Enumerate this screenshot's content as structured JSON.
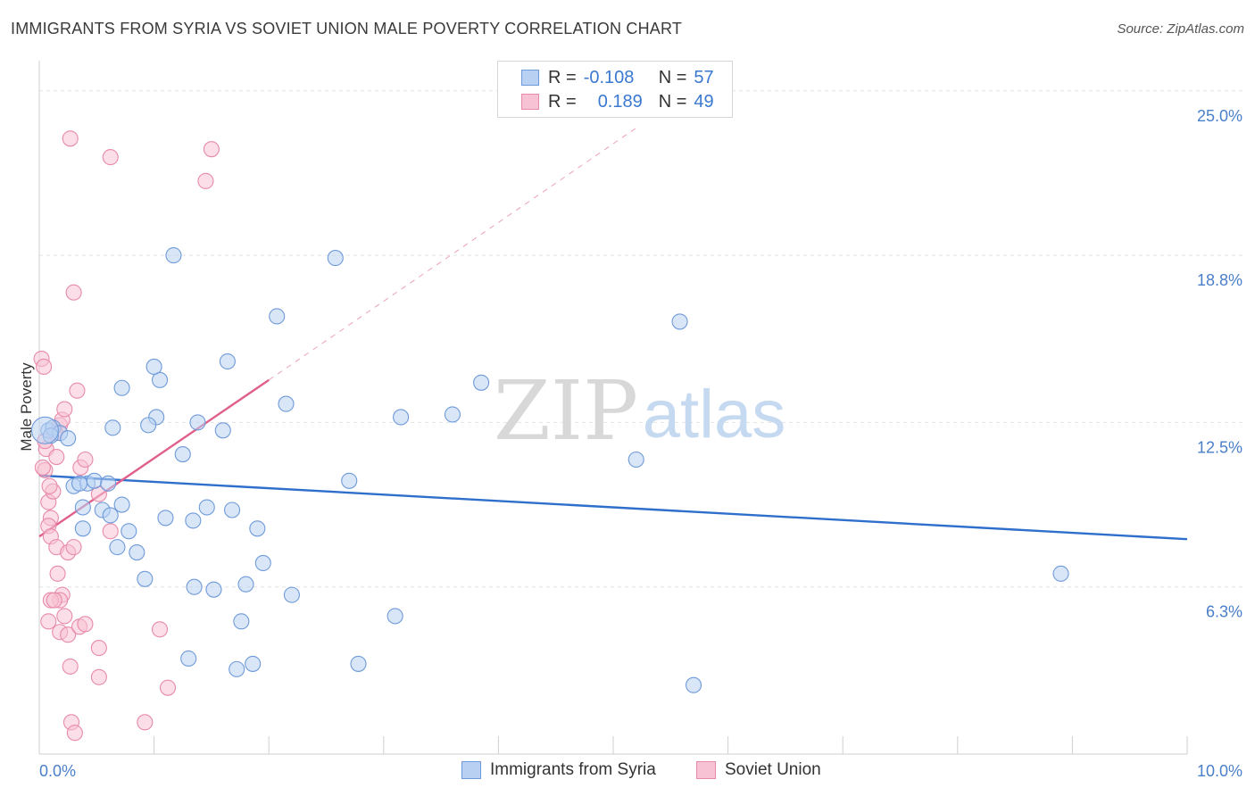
{
  "title": "IMMIGRANTS FROM SYRIA VS SOVIET UNION MALE POVERTY CORRELATION CHART",
  "source": "Source: ZipAtlas.com",
  "watermark": {
    "zip": "ZIP",
    "atlas": "atlas"
  },
  "legend": {
    "syria": {
      "r_label": "R =",
      "r_value": "-0.108",
      "n_label": "N =",
      "n_value": "57"
    },
    "soviet": {
      "r_label": "R =",
      "r_value": "0.189",
      "n_label": "N =",
      "n_value": "49"
    }
  },
  "bottom_legend": {
    "syria": "Immigrants from Syria",
    "soviet": "Soviet Union"
  },
  "colors": {
    "syria_fill": "#b8d1f2",
    "syria_stroke": "#6f9ad9",
    "syria_line": "#2f6fcc",
    "soviet_fill": "#f7c2d3",
    "soviet_stroke": "#e88aaa",
    "soviet_line": "#e0608d",
    "tick": "#4a7fc9",
    "grid": "#e3e3e3"
  },
  "chart_data": {
    "type": "scatter",
    "title": "IMMIGRANTS FROM SYRIA VS SOVIET UNION MALE POVERTY CORRELATION CHART",
    "xlabel": "",
    "ylabel": "Male Poverty",
    "xlim": [
      0,
      10
    ],
    "ylim": [
      0,
      25.8
    ],
    "x_tick_labels": [
      "0.0%",
      "10.0%"
    ],
    "y_ticks": [
      6.3,
      12.5,
      18.8,
      25.0
    ],
    "y_tick_labels": [
      "6.3%",
      "12.5%",
      "18.8%",
      "25.0%"
    ],
    "series": [
      {
        "name": "Immigrants from Syria",
        "points": [
          [
            0.08,
            12.2
          ],
          [
            0.12,
            12.3
          ],
          [
            0.18,
            12.1
          ],
          [
            0.25,
            11.9
          ],
          [
            0.1,
            12.0
          ],
          [
            0.3,
            10.1
          ],
          [
            0.42,
            10.2
          ],
          [
            0.48,
            10.3
          ],
          [
            0.35,
            10.2
          ],
          [
            0.6,
            10.2
          ],
          [
            0.38,
            9.3
          ],
          [
            0.55,
            9.2
          ],
          [
            0.62,
            9.0
          ],
          [
            0.72,
            9.4
          ],
          [
            0.38,
            8.5
          ],
          [
            0.78,
            8.4
          ],
          [
            0.68,
            7.8
          ],
          [
            0.85,
            7.6
          ],
          [
            0.92,
            6.6
          ],
          [
            1.1,
            8.9
          ],
          [
            1.34,
            8.8
          ],
          [
            1.46,
            9.3
          ],
          [
            1.68,
            9.2
          ],
          [
            1.9,
            8.5
          ],
          [
            1.95,
            7.2
          ],
          [
            1.35,
            6.3
          ],
          [
            1.52,
            6.2
          ],
          [
            1.8,
            6.4
          ],
          [
            2.2,
            6.0
          ],
          [
            1.76,
            5.0
          ],
          [
            1.3,
            3.6
          ],
          [
            1.72,
            3.2
          ],
          [
            1.86,
            3.4
          ],
          [
            2.78,
            3.4
          ],
          [
            3.1,
            5.2
          ],
          [
            2.7,
            10.3
          ],
          [
            1.25,
            11.3
          ],
          [
            1.02,
            12.7
          ],
          [
            0.95,
            12.4
          ],
          [
            0.64,
            12.3
          ],
          [
            1.38,
            12.5
          ],
          [
            1.6,
            12.2
          ],
          [
            2.15,
            13.2
          ],
          [
            0.72,
            13.8
          ],
          [
            1.05,
            14.1
          ],
          [
            1.0,
            14.6
          ],
          [
            1.64,
            14.8
          ],
          [
            2.07,
            16.5
          ],
          [
            1.17,
            18.8
          ],
          [
            2.58,
            18.7
          ],
          [
            3.15,
            12.7
          ],
          [
            3.6,
            12.8
          ],
          [
            3.85,
            14.0
          ],
          [
            5.2,
            11.1
          ],
          [
            5.58,
            16.3
          ],
          [
            5.7,
            2.6
          ],
          [
            8.9,
            6.8
          ]
        ]
      },
      {
        "name": "Soviet Union",
        "points": [
          [
            0.02,
            14.9
          ],
          [
            0.04,
            14.6
          ],
          [
            0.06,
            11.5
          ],
          [
            0.05,
            10.7
          ],
          [
            0.03,
            10.8
          ],
          [
            0.08,
            9.5
          ],
          [
            0.1,
            8.9
          ],
          [
            0.12,
            9.9
          ],
          [
            0.15,
            11.2
          ],
          [
            0.18,
            12.4
          ],
          [
            0.2,
            12.6
          ],
          [
            0.22,
            13.0
          ],
          [
            0.33,
            13.7
          ],
          [
            0.36,
            10.8
          ],
          [
            0.4,
            11.1
          ],
          [
            0.52,
            9.8
          ],
          [
            0.62,
            8.4
          ],
          [
            0.08,
            8.6
          ],
          [
            0.1,
            8.2
          ],
          [
            0.15,
            7.8
          ],
          [
            0.25,
            7.6
          ],
          [
            0.3,
            7.8
          ],
          [
            0.16,
            6.8
          ],
          [
            0.2,
            6.0
          ],
          [
            0.18,
            5.8
          ],
          [
            0.1,
            5.8
          ],
          [
            0.13,
            5.8
          ],
          [
            0.22,
            5.2
          ],
          [
            0.08,
            5.0
          ],
          [
            0.18,
            4.6
          ],
          [
            0.25,
            4.5
          ],
          [
            0.35,
            4.8
          ],
          [
            0.4,
            4.9
          ],
          [
            0.52,
            4.0
          ],
          [
            0.27,
            3.3
          ],
          [
            0.52,
            2.9
          ],
          [
            1.05,
            4.7
          ],
          [
            1.12,
            2.5
          ],
          [
            0.28,
            1.2
          ],
          [
            0.31,
            0.8
          ],
          [
            0.92,
            1.2
          ],
          [
            0.27,
            23.2
          ],
          [
            0.62,
            22.5
          ],
          [
            1.5,
            22.8
          ],
          [
            1.45,
            21.6
          ],
          [
            0.3,
            17.4
          ],
          [
            0.05,
            11.8
          ],
          [
            0.14,
            12.1
          ],
          [
            0.09,
            10.1
          ]
        ]
      }
    ],
    "trend_lines": [
      {
        "series": "Immigrants from Syria",
        "x": [
          0.0,
          10.0
        ],
        "y": [
          10.5,
          8.1
        ],
        "style": "solid"
      },
      {
        "series": "Soviet Union",
        "x": [
          0.0,
          2.0
        ],
        "y": [
          8.2,
          14.1
        ],
        "style": "solid"
      },
      {
        "series": "Soviet Union",
        "x": [
          2.0,
          5.2
        ],
        "y": [
          14.1,
          23.6
        ],
        "style": "dashed"
      }
    ]
  }
}
